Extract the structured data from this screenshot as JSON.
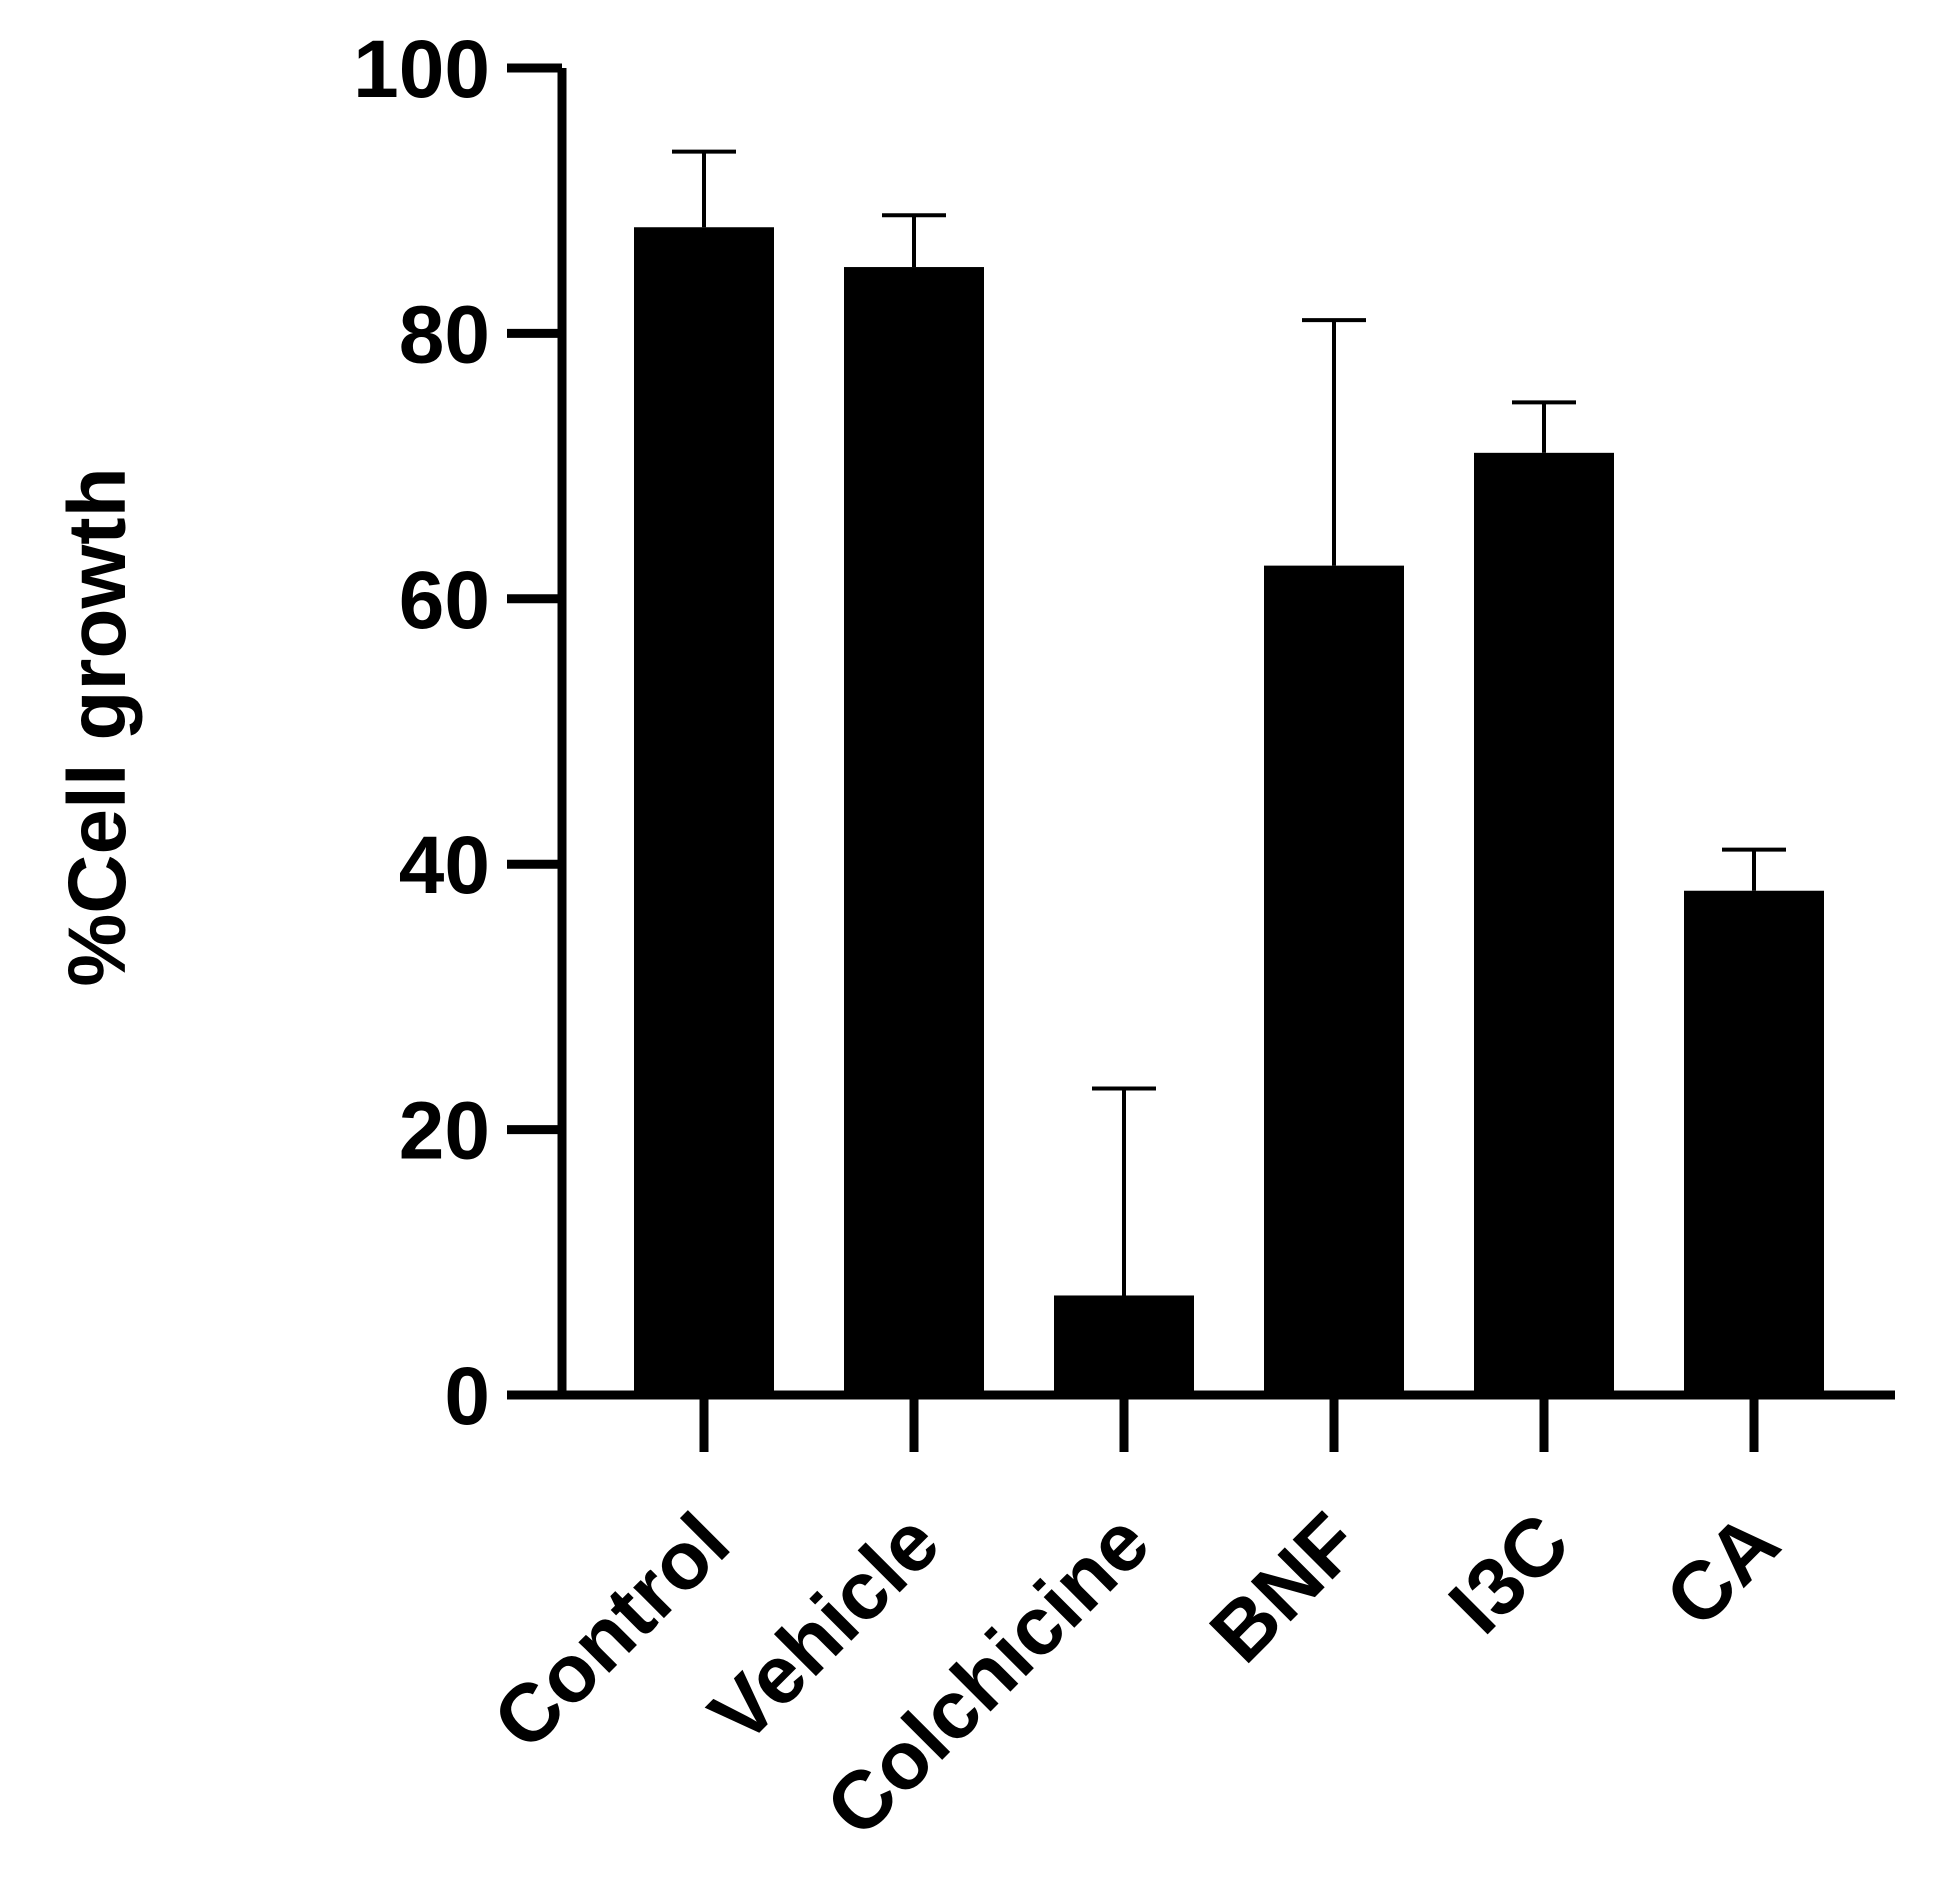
{
  "chart_data": {
    "type": "bar",
    "title": "",
    "xlabel": "",
    "ylabel": "%Cell growth",
    "categories": [
      "Control",
      "Vehicle",
      "Colchicine",
      "BNF",
      "I3C",
      "CA"
    ],
    "values": [
      88,
      85,
      7.5,
      62.5,
      71,
      38
    ],
    "error_upper": [
      93.7,
      88.9,
      23.1,
      81,
      74.8,
      41.1
    ],
    "ylim": [
      0,
      100
    ],
    "yticks": [
      "0",
      "20",
      "40",
      "60",
      "80",
      "100"
    ],
    "grid": false,
    "legend": "none",
    "bar_color": "#000000"
  }
}
